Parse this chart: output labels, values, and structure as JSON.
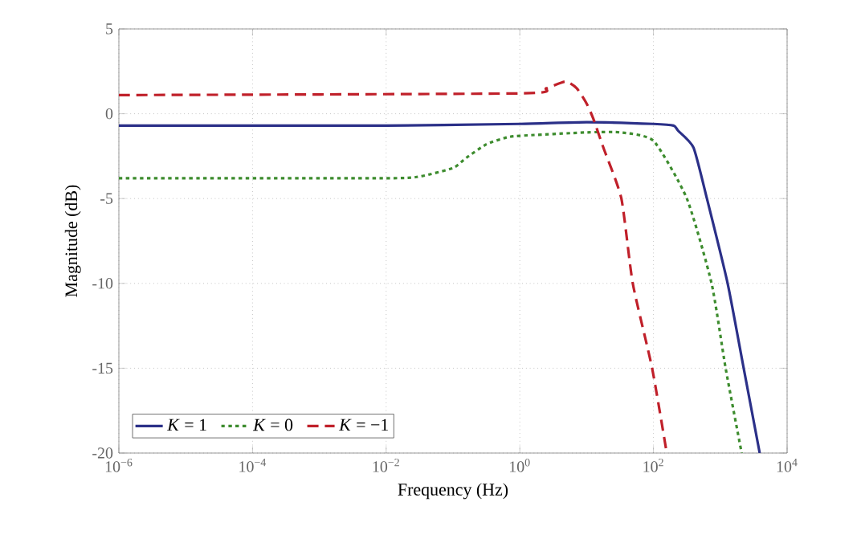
{
  "chart_data": {
    "type": "line",
    "xlabel": "Frequency (Hz)",
    "ylabel": "Magnitude (dB)",
    "log": "x",
    "xlim": [
      1e-06,
      10000
    ],
    "ylim": [
      -20,
      5
    ],
    "xticks": [
      {
        "value": 1e-06,
        "label": "10$^{−6}$"
      },
      {
        "value": 0.0001,
        "label": "10$^{−4}$"
      },
      {
        "value": 0.01,
        "label": "10$^{−2}$"
      },
      {
        "value": 1,
        "label": "10$^{0}$"
      },
      {
        "value": 100,
        "label": "10$^{2}$"
      },
      {
        "value": 10000,
        "label": "10$^{4}$"
      }
    ],
    "yticks": [
      -20,
      -15,
      -10,
      -5,
      0,
      5
    ],
    "grid": true,
    "legend": "bottom left",
    "marker": "none",
    "series": [
      {
        "name": "*K* = 1",
        "color": "#2b3088",
        "line_style": "solid",
        "x": [
          1e-06,
          0.01,
          1,
          10,
          100,
          200,
          234,
          398,
          631,
          1288,
          2239,
          3890
        ],
        "values": [
          -0.7,
          -0.7,
          -0.6,
          -0.5,
          -0.6,
          -0.7,
          -1,
          -2,
          -5,
          -10,
          -15,
          -20
        ]
      },
      {
        "name": "*K* = 0",
        "color": "#3d8c2e",
        "line_style": "dotted",
        "x": [
          1e-06,
          0.01,
          0.0316,
          0.1,
          0.158,
          0.316,
          0.631,
          1,
          10,
          31.6,
          100,
          316,
          741,
          1202,
          2089
        ],
        "values": [
          -3.8,
          -3.8,
          -3.7,
          -3.2,
          -2.6,
          -1.8,
          -1.4,
          -1.3,
          -1.1,
          -1.1,
          -1.6,
          -5,
          -10,
          -15,
          -20
        ]
      },
      {
        "name": "*K* = −1",
        "color": "#c0202a",
        "line_style": "dashed",
        "x": [
          1e-06,
          1,
          2.5,
          4.8,
          7.1,
          10,
          12.6,
          17.8,
          33.1,
          49,
          95.5,
          158
        ],
        "values": [
          1.1,
          1.2,
          1.5,
          1.9,
          1.5,
          0.6,
          -0.3,
          -2,
          -5,
          -10,
          -15,
          -20
        ]
      }
    ]
  }
}
